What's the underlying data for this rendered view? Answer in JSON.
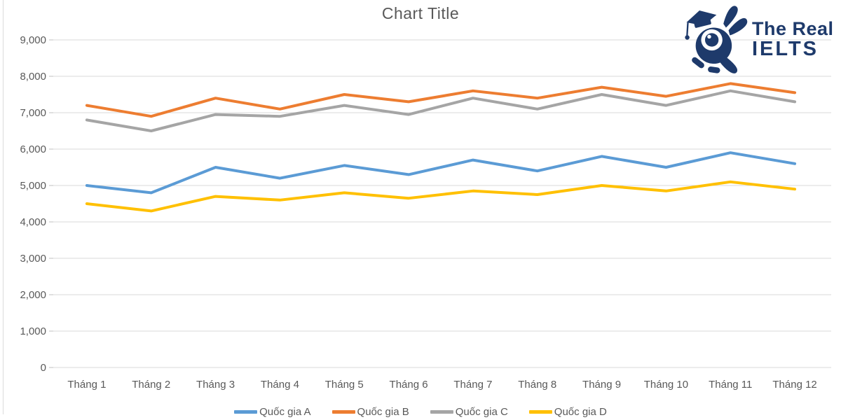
{
  "title": "Chart Title",
  "logo": {
    "line1": "The Real",
    "line2": "IELTS",
    "color": "#1e3a6b",
    "mascot_icon": "turtle-graduate-icon"
  },
  "chart_data": {
    "type": "line",
    "title": "Chart Title",
    "categories": [
      "Tháng 1",
      "Tháng 2",
      "Tháng 3",
      "Tháng 4",
      "Tháng 5",
      "Tháng 6",
      "Tháng 7",
      "Tháng 8",
      "Tháng 9",
      "Tháng 10",
      "Tháng 11",
      "Tháng 12"
    ],
    "series": [
      {
        "name": "Quốc gia A",
        "color": "#5B9BD5",
        "values": [
          5000,
          4800,
          5500,
          5200,
          5550,
          5300,
          5700,
          5400,
          5800,
          5500,
          5900,
          5600
        ]
      },
      {
        "name": "Quốc gia B",
        "color": "#ED7D31",
        "values": [
          7200,
          6900,
          7400,
          7100,
          7500,
          7300,
          7600,
          7400,
          7700,
          7450,
          7800,
          7550
        ]
      },
      {
        "name": "Quốc gia C",
        "color": "#A5A5A5",
        "values": [
          6800,
          6500,
          6950,
          6900,
          7200,
          6950,
          7400,
          7100,
          7500,
          7200,
          7600,
          7300
        ]
      },
      {
        "name": "Quốc gia D",
        "color": "#FFC000",
        "values": [
          4500,
          4300,
          4700,
          4600,
          4800,
          4650,
          4850,
          4750,
          5000,
          4850,
          5100,
          4900
        ]
      }
    ],
    "y_tick_labels": [
      "0",
      "1,000",
      "2,000",
      "3,000",
      "4,000",
      "5,000",
      "6,000",
      "7,000",
      "8,000",
      "9,000"
    ],
    "ylim": [
      0,
      9000
    ],
    "y_step": 1000,
    "grid": true,
    "legend_position": "bottom",
    "axis_text_color": "#595959",
    "gridline_color": "#d9d9d9",
    "tick_color": "#bfbfbf",
    "title_color": "#595959"
  }
}
